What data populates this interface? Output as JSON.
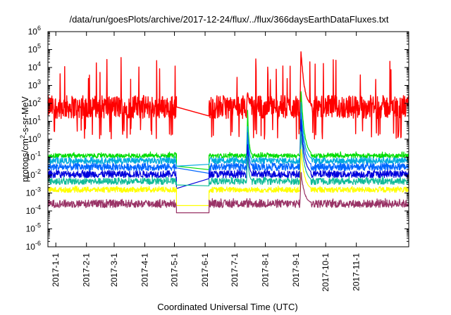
{
  "chart_data": {
    "type": "line",
    "title": "/data/run/goesPlots/archive/2017-12-24/flux/../flux/366daysEarthDataFluxes.txt",
    "xlabel": "Coordinated Universal Time (UTC)",
    "ylabel": {
      "prefix": "protons/cm",
      "sup": "2",
      "suffix": "-s-sr-MeV"
    },
    "y_scale": "log",
    "ylim_exp": [
      -6,
      6
    ],
    "y_ticks": [
      {
        "exp": -6,
        "label": "-6"
      },
      {
        "exp": -5,
        "label": "-5"
      },
      {
        "exp": -4,
        "label": "-4"
      },
      {
        "exp": -3,
        "label": "-3"
      },
      {
        "exp": -2,
        "label": "-2"
      },
      {
        "exp": -1,
        "label": "-1"
      },
      {
        "exp": 0,
        "label": "0"
      },
      {
        "exp": 1,
        "label": "1"
      },
      {
        "exp": 2,
        "label": "2"
      },
      {
        "exp": 3,
        "label": "3"
      },
      {
        "exp": 4,
        "label": "4"
      },
      {
        "exp": 5,
        "label": "5"
      },
      {
        "exp": 6,
        "label": "6"
      }
    ],
    "y_tick_base": "10",
    "xlim": [
      "2016-12-24",
      "2017-12-24"
    ],
    "x_ticks": [
      "2017-1-1",
      "2017-2-1",
      "2017-3-1",
      "2017-4-1",
      "2017-5-1",
      "2017-6-1",
      "2017-7-1",
      "2017-8-1",
      "2017-9-1",
      "2017-10-1",
      "2017-11-1"
    ],
    "x_tick_dates": [
      "2017-01-01",
      "2017-02-01",
      "2017-03-01",
      "2017-04-01",
      "2017-05-01",
      "2017-06-01",
      "2017-07-01",
      "2017-08-01",
      "2017-09-01",
      "2017-10-01",
      "2017-11-01"
    ],
    "data_gap": [
      "2017-05-03",
      "2017-06-05"
    ],
    "grid": false,
    "legend": "none",
    "series": [
      {
        "color": "#ff0000",
        "baseline_exp": 1.8,
        "spread": 0.65,
        "spike_exp": 4.6,
        "gap_exp": [
          1.8,
          1.3
        ],
        "events": [
          {
            "date": "2017-07-14",
            "peak_exp": 2.7,
            "days": 4
          },
          {
            "date": "2017-09-06",
            "peak_exp": 5.0,
            "days": 10
          }
        ]
      },
      {
        "color": "#00dd00",
        "baseline_exp": -0.92,
        "spread": 0.12,
        "spike_exp": -0.7,
        "gap_exp": [
          -1.5,
          -1.7
        ],
        "events": [
          {
            "date": "2017-07-14",
            "peak_exp": 1.6,
            "days": 4
          },
          {
            "date": "2017-09-06",
            "peak_exp": 2.8,
            "days": 10
          }
        ]
      },
      {
        "color": "#00aadd",
        "baseline_exp": -1.2,
        "spread": 0.18,
        "spike_exp": -0.95,
        "gap_exp": [
          -1.5,
          -1.4
        ],
        "events": [
          {
            "date": "2017-07-14",
            "peak_exp": 0.8,
            "days": 4
          },
          {
            "date": "2017-09-06",
            "peak_exp": 2.0,
            "days": 10
          }
        ]
      },
      {
        "color": "#0066ff",
        "baseline_exp": -1.55,
        "spread": 0.2,
        "spike_exp": -1.3,
        "gap_exp": [
          -1.6,
          -1.9
        ],
        "events": [
          {
            "date": "2017-07-14",
            "peak_exp": 0.4,
            "days": 4
          },
          {
            "date": "2017-09-06",
            "peak_exp": 1.5,
            "days": 10
          }
        ]
      },
      {
        "color": "#0000dd",
        "baseline_exp": -1.95,
        "spread": 0.2,
        "spike_exp": -1.7,
        "gap_exp": [
          -2.75,
          -2.2
        ],
        "events": [
          {
            "date": "2017-07-14",
            "peak_exp": -0.2,
            "days": 4
          },
          {
            "date": "2017-09-06",
            "peak_exp": 1.0,
            "days": 10
          }
        ]
      },
      {
        "color": "#11bb99",
        "baseline_exp": -2.35,
        "spread": 0.18,
        "spike_exp": -2.1,
        "gap_exp": [
          -2.55,
          -2.6
        ],
        "events": [
          {
            "date": "2017-07-14",
            "peak_exp": -0.8,
            "days": 4
          },
          {
            "date": "2017-09-06",
            "peak_exp": 0.4,
            "days": 10
          }
        ]
      },
      {
        "color": "#ffff00",
        "baseline_exp": -2.82,
        "spread": 0.15,
        "spike_exp": -2.6,
        "gap_exp": [
          -3.7,
          -3.7
        ],
        "events": [
          {
            "date": "2017-09-06",
            "peak_exp": -0.5,
            "days": 10
          }
        ]
      },
      {
        "color": "#993366",
        "baseline_exp": -3.6,
        "spread": 0.22,
        "spike_exp": -3.3,
        "gap_exp": [
          -4.1,
          -4.1
        ],
        "events": [
          {
            "date": "2017-09-06",
            "peak_exp": -1.8,
            "days": 10
          }
        ]
      }
    ]
  }
}
